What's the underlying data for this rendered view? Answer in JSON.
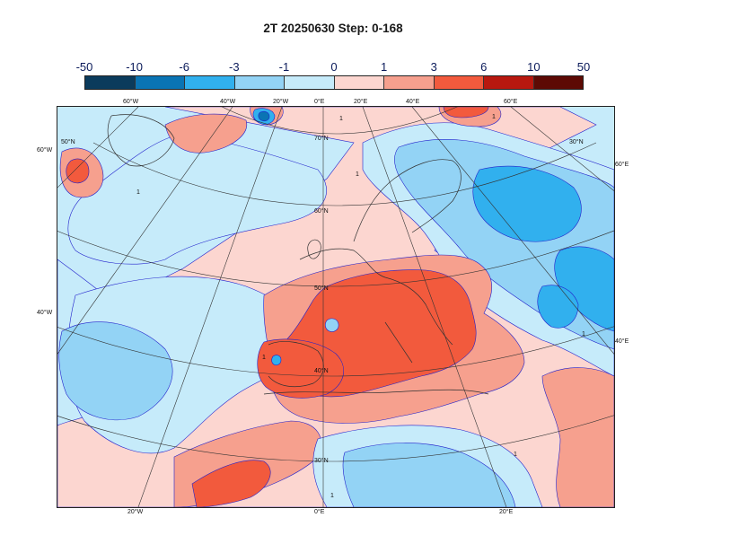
{
  "title": "2T 20250630 Step: 0-168",
  "legend": {
    "levels": [
      "-50",
      "-10",
      "-6",
      "-3",
      "-1",
      "0",
      "1",
      "3",
      "6",
      "10",
      "50"
    ],
    "colors": [
      "#0b3b5c",
      "#0a74b4",
      "#31b0ee",
      "#93d3f5",
      "#c6ebfa",
      "#fcd6d0",
      "#f6a08e",
      "#f25a3d",
      "#b8180f",
      "#5d0a04"
    ]
  },
  "map": {
    "projection": "polar stereographic",
    "outer_labels": {
      "top": [
        "60°W",
        "40°W",
        "20°W",
        "0°E",
        "20°E",
        "40°E",
        "60°E"
      ],
      "bottom": [
        "20°W",
        "0°E",
        "20°E"
      ],
      "left": [
        "60°W",
        "40°W"
      ],
      "right": [
        "60°E",
        "40°E"
      ]
    },
    "inner_labels": [
      "70°N",
      "60°N",
      "50°N",
      "40°N",
      "30°N",
      "50°N",
      "30°N"
    ],
    "contour_label": "1",
    "colors": {
      "coast": "#333333",
      "contour": "#2222cc",
      "graticule": "#333333"
    }
  }
}
